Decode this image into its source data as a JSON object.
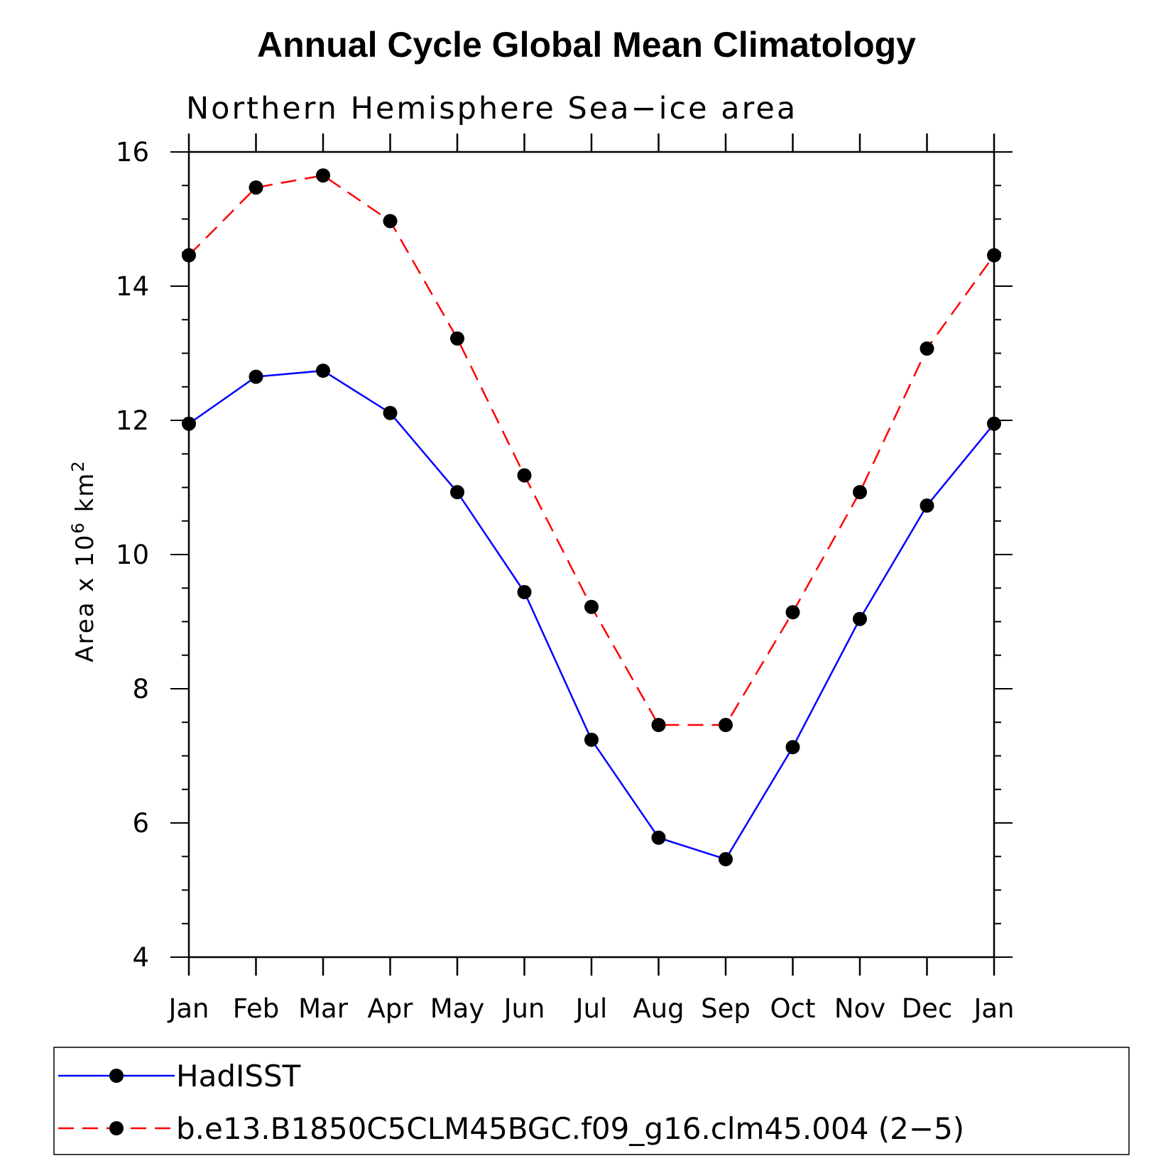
{
  "chart_data": {
    "type": "line",
    "title": "Annual Cycle Global Mean Climatology",
    "subtitle": "Northern Hemisphere Sea−ice area",
    "ylabel": "Area x 10",
    "ylabel_sup1": "6",
    "ylabel_unit": " km",
    "ylabel_sup2": "2",
    "categories": [
      "Jan",
      "Feb",
      "Mar",
      "Apr",
      "May",
      "Jun",
      "Jul",
      "Aug",
      "Sep",
      "Oct",
      "Nov",
      "Dec",
      "Jan"
    ],
    "ylim": [
      4,
      16
    ],
    "yticks": [
      4,
      6,
      8,
      10,
      12,
      14,
      16
    ],
    "ytick_labels": [
      "4",
      "6",
      "8",
      "10",
      "12",
      "14",
      "16"
    ],
    "series": [
      {
        "name": "HadISST",
        "color": "#0000ff",
        "dash": "solid",
        "marker": "filled-circle",
        "values": [
          11.95,
          12.65,
          12.74,
          12.11,
          10.93,
          9.44,
          7.24,
          5.78,
          5.46,
          7.13,
          9.04,
          10.73,
          11.95
        ]
      },
      {
        "name": "b.e13.B1850C5CLM45BGC.f09_g16.clm45.004 (2−5)",
        "color": "#ff0000",
        "dash": "dashed",
        "marker": "filled-circle",
        "values": [
          14.46,
          15.47,
          15.65,
          14.97,
          13.22,
          11.18,
          9.22,
          7.46,
          7.46,
          9.14,
          10.93,
          13.07,
          14.46
        ]
      }
    ],
    "legend_position": "bottom",
    "grid": false
  }
}
